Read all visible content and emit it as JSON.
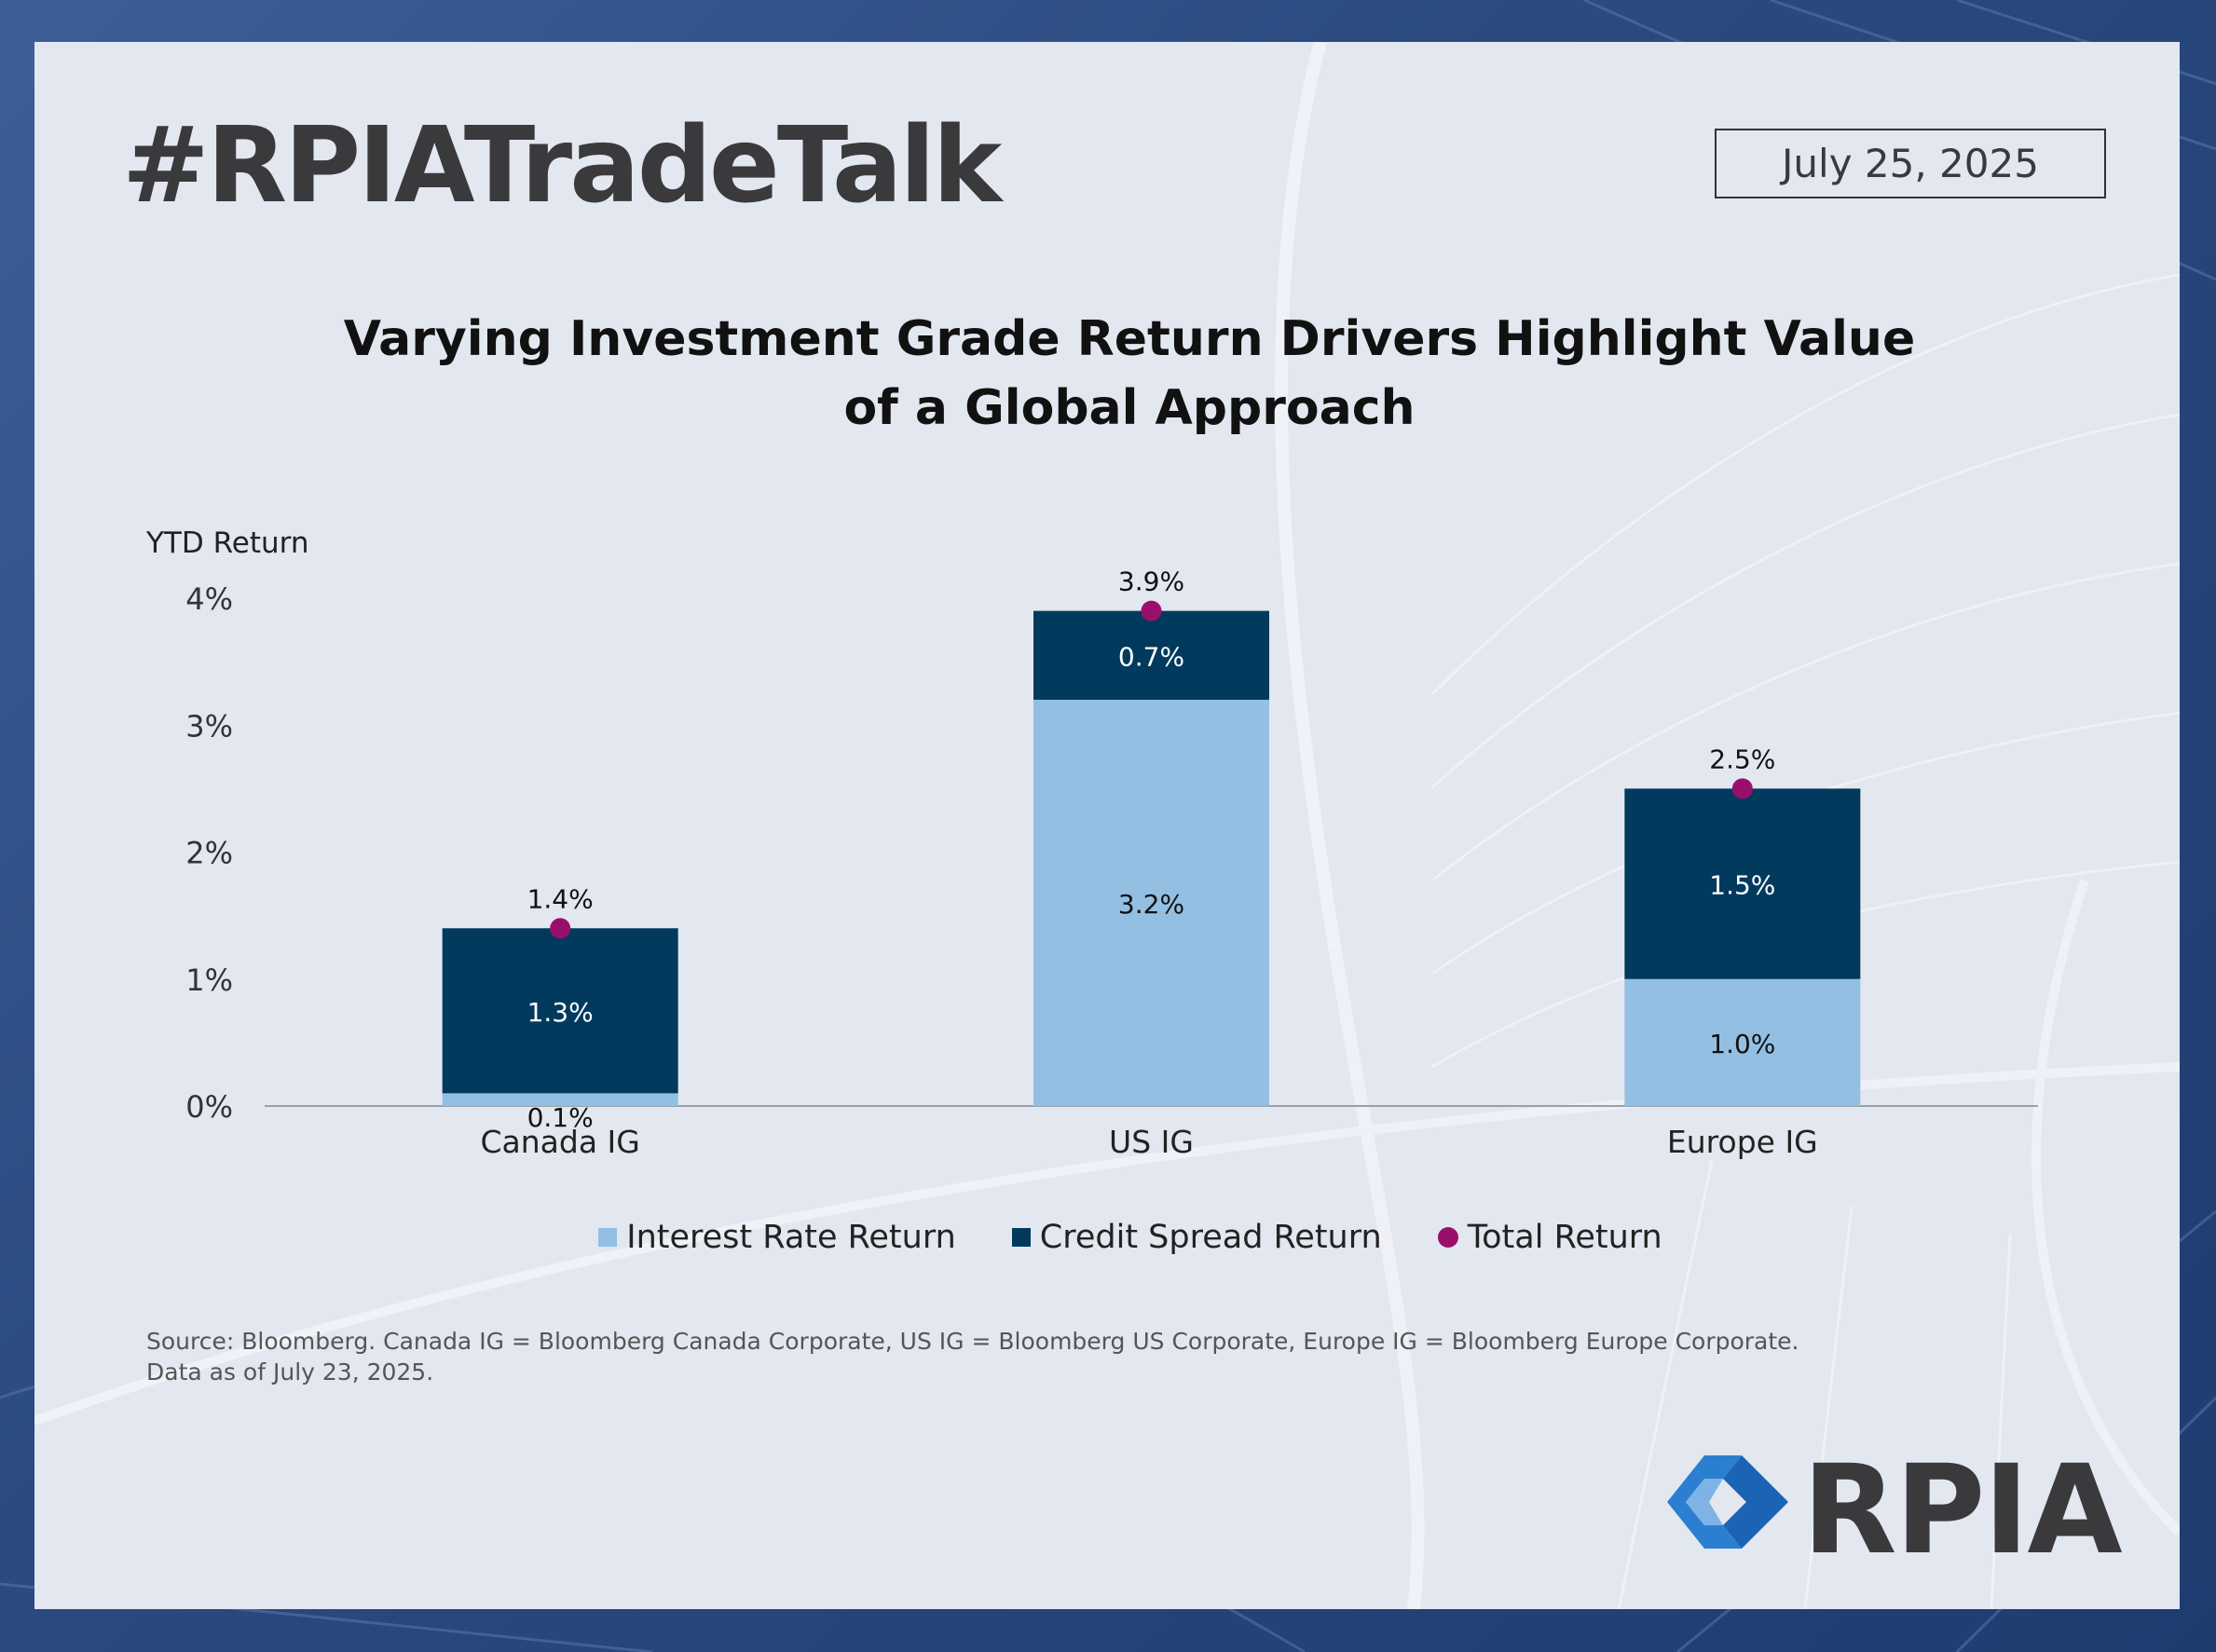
{
  "header": {
    "hashtag": "#RPIATradeTalk",
    "date": "July 25, 2025"
  },
  "chart_title": {
    "line1": "Varying Investment Grade Return Drivers Highlight Value",
    "line2": "of a Global Approach"
  },
  "chart_data": {
    "type": "bar",
    "stacked": true,
    "ylabel": "YTD Return",
    "ylim": [
      0,
      4
    ],
    "yticks": [
      "0%",
      "1%",
      "2%",
      "3%",
      "4%"
    ],
    "categories": [
      "Canada IG",
      "US IG",
      "Europe IG"
    ],
    "series": [
      {
        "name": "Interest Rate Return",
        "values": [
          0.1,
          3.2,
          1.0
        ],
        "labels": [
          "0.1%",
          "3.2%",
          "1.0%"
        ]
      },
      {
        "name": "Credit Spread Return",
        "values": [
          1.3,
          0.7,
          1.5
        ],
        "labels": [
          "1.3%",
          "0.7%",
          "1.5%"
        ]
      }
    ],
    "total": {
      "name": "Total Return",
      "values": [
        1.4,
        3.9,
        2.5
      ],
      "labels": [
        "1.4%",
        "3.9%",
        "2.5%"
      ]
    },
    "colors": {
      "interest_rate": "#93bfe3",
      "credit_spread": "#023a5e",
      "total": "#9b0f6c"
    },
    "legend_position": "bottom"
  },
  "legend": {
    "interest_rate": "Interest Rate Return",
    "credit_spread": "Credit Spread Return",
    "total": "Total Return"
  },
  "source": {
    "line1": "Source: Bloomberg. Canada IG = Bloomberg Canada Corporate, US IG = Bloomberg US Corporate, Europe IG = Bloomberg Europe Corporate.",
    "line2": "Data as of July 23, 2025."
  },
  "logo": {
    "text": "RPIA",
    "icon": "rpia-diamond-logo-icon"
  }
}
